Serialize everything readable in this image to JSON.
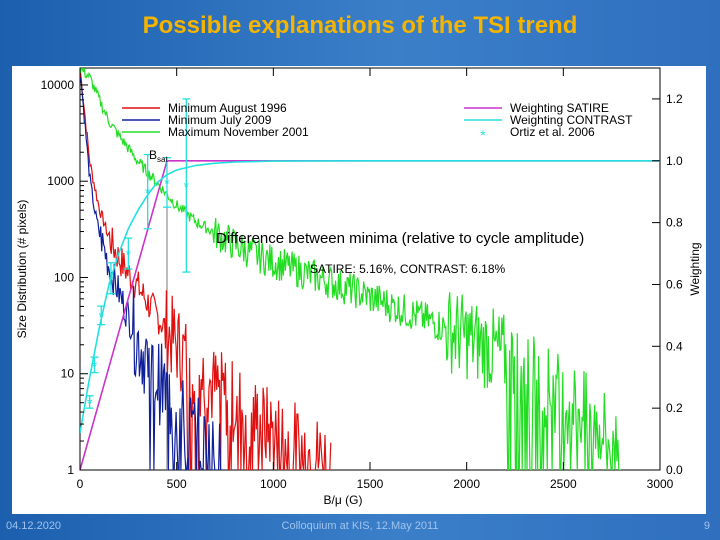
{
  "slide": {
    "title": "Possible explanations of  the TSI trend",
    "footer_date": "04.12.2020",
    "footer_event": "Colloquium at KIS, 12.May 2011",
    "page_number": "9"
  },
  "colors": {
    "background": "#2a6cbd",
    "title": "#f5b400",
    "min1996": "#e01010",
    "min2009": "#10209a",
    "max2001": "#22dd22",
    "satire": "#cc33cc",
    "contrast": "#22e0e0",
    "ortiz": "#22e0e0",
    "bsat_line": "#777777"
  },
  "chart_data": {
    "type": "line",
    "xlabel": "B/μ (G)",
    "ylabel_left": "Size Distribution (# pixels)",
    "ylabel_right": "Weighting",
    "xlim": [
      0,
      3000
    ],
    "ylim_left": [
      1,
      15000
    ],
    "ylim_right": [
      0.0,
      1.3
    ],
    "xticks": [
      0,
      500,
      1000,
      1500,
      2000,
      2500,
      3000
    ],
    "xtick_labels": [
      "0",
      "500",
      "1000",
      "1500",
      "2000",
      "2500",
      "3000"
    ],
    "yticks_left": [
      1,
      10,
      100,
      1000,
      10000
    ],
    "ytick_labels_left": [
      "1",
      "10",
      "100",
      "1000",
      "10000"
    ],
    "yticks_right": [
      0.0,
      0.2,
      0.4,
      0.6,
      0.8,
      1.0,
      1.2
    ],
    "ytick_labels_right": [
      "0.0",
      "0.2",
      "0.4",
      "0.6",
      "0.8",
      "1.0",
      "1.2"
    ],
    "legend": [
      {
        "label": "Minimum August 1996",
        "series": "min1996"
      },
      {
        "label": "Minimum July 2009",
        "series": "min2009"
      },
      {
        "label": "Maximum November 2001",
        "series": "max2001"
      },
      {
        "label": "Weighting SATIRE",
        "series": "satire"
      },
      {
        "label": "Weighting CONTRAST",
        "series": "contrast"
      },
      {
        "label": "Ortiz et al. 2006",
        "series": "ortiz"
      }
    ],
    "bsat": {
      "label": "B",
      "subscript": "sat",
      "x": 450
    },
    "annotation_main": "Difference between minima (relative to cycle amplitude)",
    "annotation_values": "SATIRE: 5.16%, CONTRAST: 6.18%",
    "series": [
      {
        "name": "Minimum August 1996",
        "key": "min1996",
        "axis": "left",
        "x": [
          0,
          25,
          50,
          75,
          100,
          150,
          200,
          250,
          300,
          350,
          400,
          450,
          500,
          550,
          600,
          700,
          800,
          900,
          1000,
          1100,
          1200,
          1300
        ],
        "y": [
          15000,
          5000,
          1600,
          900,
          520,
          260,
          160,
          110,
          80,
          55,
          40,
          28,
          20,
          15,
          11,
          7,
          5,
          3.5,
          2.5,
          2,
          1.5,
          1.2
        ]
      },
      {
        "name": "Minimum July 2009",
        "key": "min2009",
        "axis": "left",
        "x": [
          0,
          25,
          50,
          75,
          100,
          150,
          200,
          250,
          300,
          350,
          400,
          450,
          500,
          550,
          600,
          650,
          700,
          750
        ],
        "y": [
          15000,
          4000,
          1100,
          500,
          300,
          130,
          70,
          40,
          22,
          14,
          9,
          6,
          4,
          3,
          2.2,
          1.7,
          1.3,
          1.1
        ]
      },
      {
        "name": "Maximum November 2001",
        "key": "max2001",
        "axis": "left",
        "x": [
          0,
          50,
          100,
          150,
          200,
          250,
          300,
          400,
          500,
          600,
          700,
          800,
          900,
          1000,
          1200,
          1400,
          1600,
          1800,
          2000,
          2200,
          2400,
          2600,
          2800
        ],
        "y": [
          15000,
          12000,
          7000,
          4200,
          3000,
          2200,
          1600,
          950,
          560,
          380,
          290,
          220,
          175,
          145,
          105,
          75,
          52,
          36,
          24,
          15,
          8,
          4,
          1.8
        ]
      },
      {
        "name": "Weighting SATIRE",
        "key": "satire",
        "axis": "right",
        "x": [
          0,
          450,
          3000
        ],
        "y": [
          0.0,
          1.0,
          1.0
        ]
      },
      {
        "name": "Weighting CONTRAST",
        "key": "contrast",
        "axis": "right",
        "x": [
          0,
          50,
          100,
          150,
          200,
          250,
          300,
          350,
          400,
          450,
          500,
          600,
          700,
          800,
          1000,
          1500,
          2000,
          3000
        ],
        "y": [
          0.12,
          0.3,
          0.46,
          0.6,
          0.7,
          0.78,
          0.84,
          0.89,
          0.93,
          0.955,
          0.97,
          0.985,
          0.992,
          0.996,
          0.999,
          1.0,
          1.0,
          1.0
        ]
      }
    ],
    "ortiz_points": [
      {
        "x": 50,
        "y": 0.22,
        "err": 0.02
      },
      {
        "x": 75,
        "y": 0.34,
        "err": 0.025
      },
      {
        "x": 110,
        "y": 0.5,
        "err": 0.03
      },
      {
        "x": 160,
        "y": 0.62,
        "err": 0.05
      },
      {
        "x": 250,
        "y": 0.7,
        "err": 0.05
      },
      {
        "x": 350,
        "y": 0.9,
        "err": 0.12
      },
      {
        "x": 450,
        "y": 0.93,
        "err": 0.08
      },
      {
        "x": 550,
        "y": 0.92,
        "err": 0.28
      }
    ]
  }
}
